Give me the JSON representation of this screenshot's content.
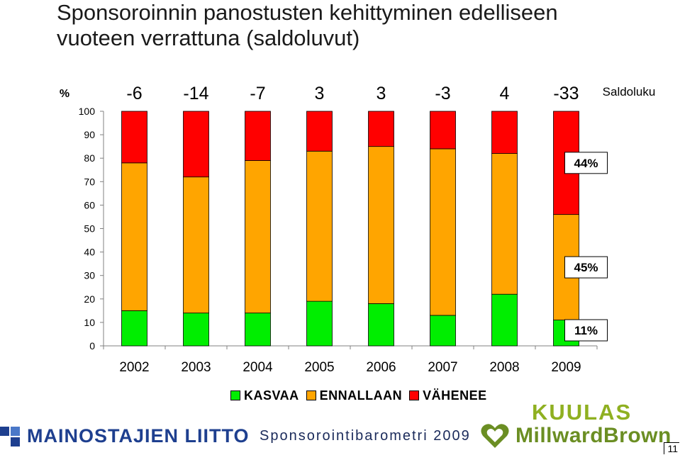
{
  "title_lines": [
    "Sponsoroinnin panostusten kehittyminen edelliseen",
    "vuoteen verrattuna (saldoluvut)"
  ],
  "chart_data": {
    "type": "bar",
    "stacked": true,
    "percent_scale": true,
    "title": "",
    "ylabel": "%",
    "ylim": [
      0,
      100
    ],
    "yticks": [
      0,
      10,
      20,
      30,
      40,
      50,
      60,
      70,
      80,
      90,
      100
    ],
    "categories": [
      "2002",
      "2003",
      "2004",
      "2005",
      "2006",
      "2007",
      "2008",
      "2009"
    ],
    "series": [
      {
        "name": "KASVAA",
        "color": "#00ee00",
        "values": [
          15,
          14,
          14,
          19,
          18,
          13,
          22,
          11
        ]
      },
      {
        "name": "ENNALLAAN",
        "color": "#ffa500",
        "values": [
          63,
          58,
          65,
          64,
          67,
          71,
          60,
          45
        ]
      },
      {
        "name": "VÄHENEE",
        "color": "#ff0000",
        "values": [
          22,
          28,
          21,
          17,
          15,
          16,
          18,
          44
        ]
      }
    ],
    "saldoluku_label": "Saldoluku",
    "saldoluku": [
      "-6",
      "-14",
      "-7",
      "3",
      "3",
      "-3",
      "4",
      "-33"
    ],
    "data_labels_last_bar": [
      "11%",
      "45%",
      "44%"
    ],
    "legend_position": "bottom",
    "grid": false
  },
  "footer": {
    "left_logo_text": "MAINOSTAJIEN LIITTO",
    "center_text": "Sponsorointibarometri 2009",
    "right_logo_top": "KUULAS",
    "right_logo_bottom": "MillwardBrown",
    "page_number": "11"
  },
  "colors": {
    "title": "#1a1a1a",
    "ml_blue": "#1e3f8f",
    "kuulas_green": "#8fb021",
    "mb_green": "#6b8e23"
  }
}
